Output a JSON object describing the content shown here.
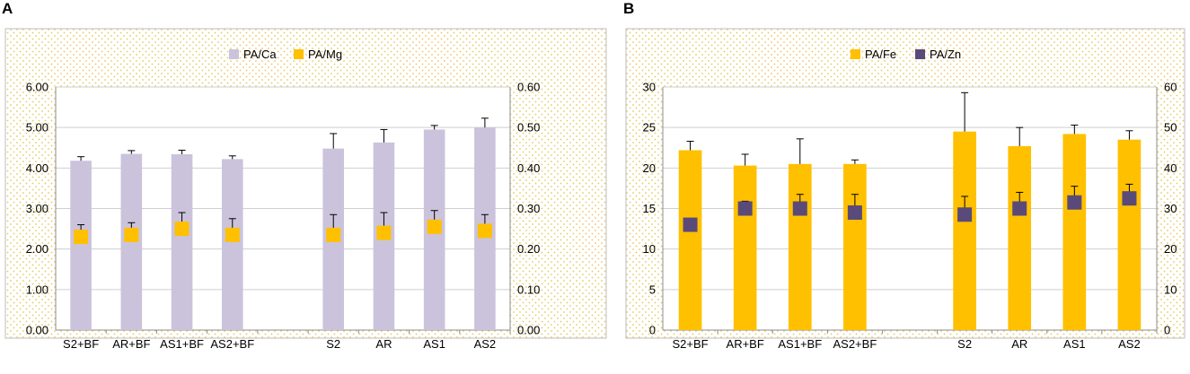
{
  "panels": [
    {
      "letter": "A"
    },
    {
      "letter": "B"
    }
  ],
  "colors": {
    "pa_ca": "#cbc3dc",
    "pa_mg": "#ffc000",
    "pa_fe": "#ffc000",
    "pa_zn": "#5a4a7a",
    "dots": "#e8c860",
    "grid": "#cfcfcf",
    "error": "#000000"
  },
  "chart_data": [
    {
      "type": "bar",
      "panel": "A",
      "categories": [
        "S2+BF",
        "AR+BF",
        "AS1+BF",
        "AS2+BF",
        "",
        "S2",
        "AR",
        "AS1",
        "AS2"
      ],
      "left_axis": {
        "min": 0,
        "max": 6,
        "step": 1,
        "ticks": [
          "0.00",
          "1.00",
          "2.00",
          "3.00",
          "4.00",
          "5.00",
          "6.00"
        ]
      },
      "right_axis": {
        "min": 0,
        "max": 0.6,
        "step": 0.1,
        "ticks": [
          "0.00",
          "0.10",
          "0.20",
          "0.30",
          "0.40",
          "0.50",
          "0.60"
        ]
      },
      "series": [
        {
          "name": "PA/Ca",
          "kind": "bar",
          "axis": "left",
          "values": [
            4.18,
            4.35,
            4.34,
            4.22,
            null,
            4.48,
            4.63,
            4.95,
            5.0
          ],
          "errors": [
            0.1,
            0.08,
            0.1,
            0.08,
            null,
            0.37,
            0.32,
            0.1,
            0.23
          ]
        },
        {
          "name": "PA/Mg",
          "kind": "marker",
          "axis": "right",
          "values": [
            0.23,
            0.235,
            0.25,
            0.235,
            null,
            0.235,
            0.24,
            0.255,
            0.245
          ],
          "errors": [
            0.03,
            0.03,
            0.04,
            0.04,
            null,
            0.05,
            0.05,
            0.04,
            0.04
          ]
        }
      ],
      "legend": [
        "PA/Ca",
        "PA/Mg"
      ]
    },
    {
      "type": "bar",
      "panel": "B",
      "categories": [
        "S2+BF",
        "AR+BF",
        "AS1+BF",
        "AS2+BF",
        "",
        "S2",
        "AR",
        "AS1",
        "AS2"
      ],
      "left_axis": {
        "min": 0,
        "max": 30,
        "step": 5,
        "ticks": [
          "0",
          "5",
          "10",
          "15",
          "20",
          "25",
          "30"
        ]
      },
      "right_axis": {
        "min": 0,
        "max": 60,
        "step": 10,
        "ticks": [
          "0",
          "10",
          "20",
          "30",
          "40",
          "50",
          "60"
        ]
      },
      "series": [
        {
          "name": "PA/Fe",
          "kind": "bar",
          "axis": "left",
          "values": [
            22.2,
            20.3,
            20.5,
            20.5,
            null,
            24.5,
            22.7,
            24.2,
            23.5
          ],
          "errors": [
            1.1,
            1.4,
            3.1,
            0.5,
            null,
            4.8,
            2.3,
            1.1,
            1.1
          ]
        },
        {
          "name": "PA/Zn",
          "kind": "marker",
          "axis": "right",
          "values": [
            26,
            30,
            30,
            29,
            null,
            28.5,
            30,
            31.5,
            32.5
          ],
          "errors": [
            1.4,
            1.8,
            3.5,
            4.5,
            null,
            4.5,
            4,
            4,
            3.5
          ]
        }
      ],
      "legend": [
        "PA/Fe",
        "PA/Zn"
      ]
    }
  ]
}
